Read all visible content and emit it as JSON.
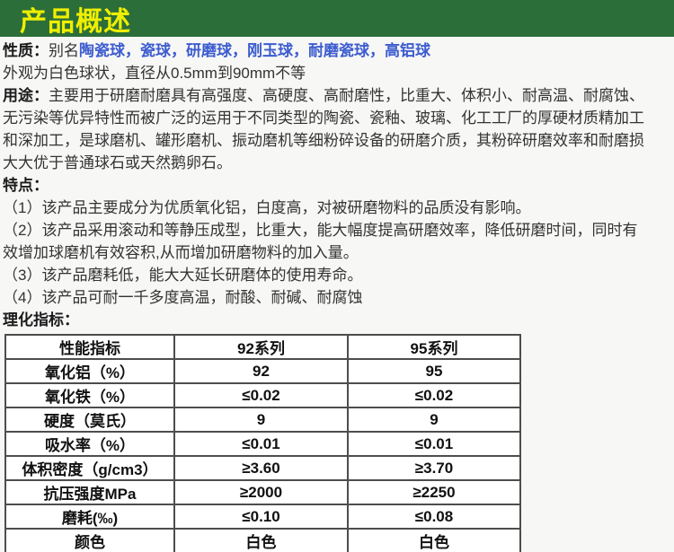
{
  "colors": {
    "banner_bg": "#2c6e3a",
    "banner_text": "#f0ef00",
    "alias_link_blue": "#3c5ccf",
    "body_text": "#333333",
    "table_border": "#4d4d4d",
    "page_bg": "#f7f7f6"
  },
  "header": {
    "title": "产品概述"
  },
  "properties": {
    "label": "性质：",
    "alias_label": "别名",
    "aliases": "陶瓷球，瓷球，研磨球，刚玉球，耐磨瓷球，高铝球"
  },
  "appearance": "外观为白色球状，直径从0.5mm到90mm不等",
  "usage": {
    "label": "用途：",
    "line1": "主要用于研磨耐磨具有高强度、高硬度、高耐磨性，比重大、体积小、耐高温、耐腐蚀、",
    "line2": "无污染等优异特性而被广泛的运用于不同类型的陶瓷、瓷釉、玻璃、化工工厂的厚硬材质精加工",
    "line3": "和深加工，是球磨机、罐形磨机、振动磨机等细粉碎设备的研磨介质，其粉碎研磨效率和耐磨损",
    "line4": "大大优于普通球石或天然鹅卵石。"
  },
  "features": {
    "label": "特点：",
    "items": [
      "（1）该产品主要成分为优质氧化铝，白度高，对被研磨物料的品质没有影响。",
      "（2）该产品采用滚动和等静压成型，比重大，能大幅度提高研磨效率，降低研磨时间，同时有",
      "效增加球磨机有效容积,从而增加研磨物料的加入量。",
      "（3）该产品磨耗低，能大大延长研磨体的使用寿命。",
      "（4）该产品可耐一千多度高温，耐酸、耐碱、耐腐蚀"
    ]
  },
  "spec_section": {
    "label": "理化指标："
  },
  "spec_table": {
    "headers": [
      "性能指标",
      "92系列",
      "95系列"
    ],
    "rows": [
      [
        "氧化铝（%）",
        "92",
        "95"
      ],
      [
        "氧化铁（%）",
        "≤0.02",
        "≤0.02"
      ],
      [
        "硬度（莫氏）",
        "9",
        "9"
      ],
      [
        "吸水率（%）",
        "≤0.01",
        "≤0.01"
      ],
      [
        "体积密度（g/cm3）",
        "≥3.60",
        "≥3.70"
      ],
      [
        "抗压强度MPa",
        "≥2000",
        "≥2250"
      ],
      [
        "磨耗(‰)",
        "≤0.10",
        "≤0.08"
      ],
      [
        "颜色",
        "白色",
        "白色"
      ]
    ]
  }
}
